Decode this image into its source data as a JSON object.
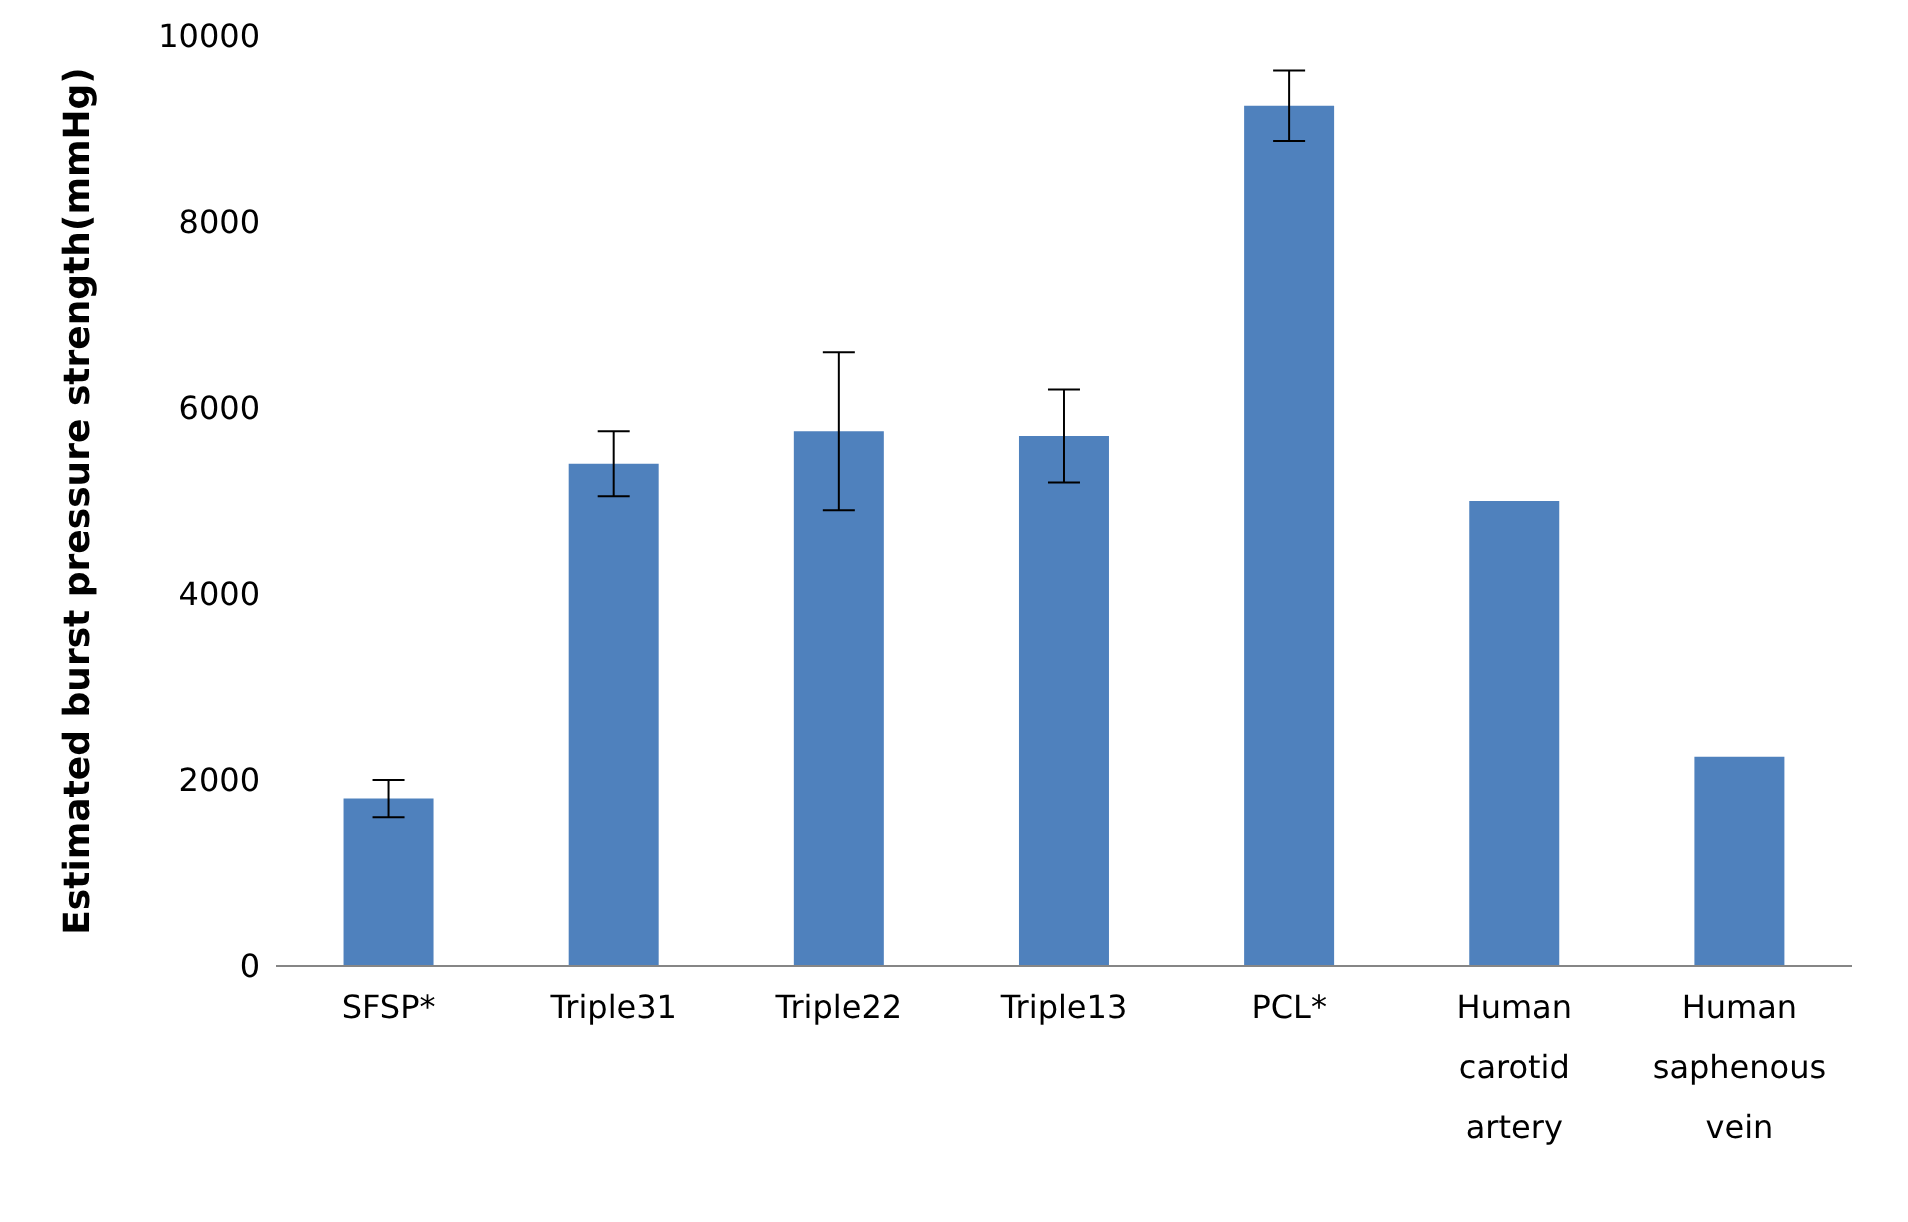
{
  "chart_data": {
    "type": "bar",
    "ylabel": "Estimated burst pressure strength(mmHg)",
    "categories": [
      "SFSP*",
      "Triple31",
      "Triple22",
      "Triple13",
      "PCL*",
      "Human carotid artery",
      "Human saphenous vein"
    ],
    "values": [
      1800,
      5400,
      5750,
      5700,
      9250,
      5000,
      2250
    ],
    "errors": [
      200,
      350,
      850,
      500,
      380,
      null,
      null
    ],
    "color": "#4f81bd",
    "ylim": [
      0,
      10000
    ],
    "yticks": [
      0,
      2000,
      4000,
      6000,
      8000,
      10000
    ],
    "grid": false,
    "legend": false
  }
}
